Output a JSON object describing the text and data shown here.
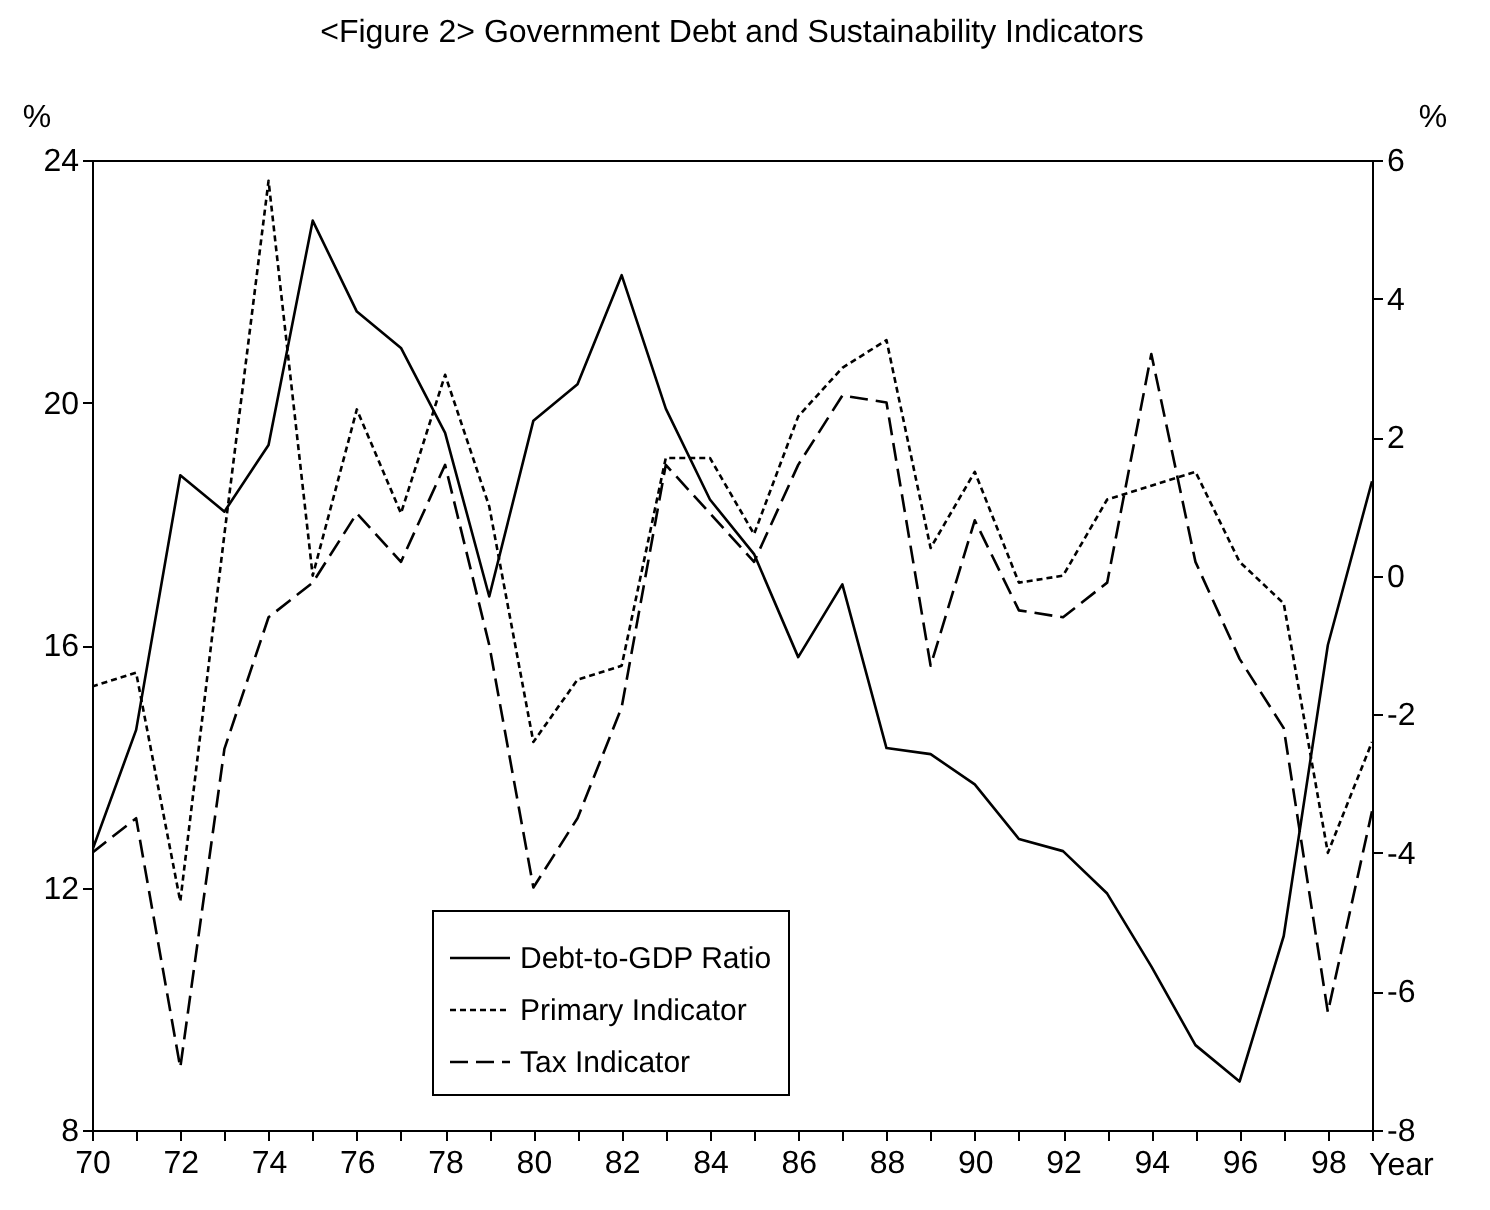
{
  "chart_data": {
    "type": "line",
    "title": "<Figure 2>  Government Debt and Sustainability Indicators",
    "xlabel": "Year",
    "ylabel": "%",
    "y2label": "%",
    "x": [
      70,
      71,
      72,
      73,
      74,
      75,
      76,
      77,
      78,
      79,
      80,
      81,
      82,
      83,
      84,
      85,
      86,
      87,
      88,
      89,
      90,
      91,
      92,
      93,
      94,
      95,
      96,
      97,
      98,
      99
    ],
    "series": [
      {
        "name": "Debt-to-GDP Ratio",
        "color": "#000000",
        "line_style": "solid",
        "axis": "y",
        "values": [
          12.6,
          14.6,
          18.8,
          18.2,
          19.3,
          23.0,
          21.5,
          20.9,
          19.5,
          16.8,
          19.7,
          20.3,
          22.1,
          19.9,
          18.4,
          17.5,
          15.8,
          17.0,
          14.3,
          14.2,
          13.7,
          12.8,
          12.6,
          11.9,
          10.7,
          9.4,
          8.8,
          11.2,
          16.0,
          18.7
        ]
      },
      {
        "name": "Primary Indicator",
        "color": "#000000",
        "line_style": "dotted",
        "axis": "y2",
        "values": [
          -1.6,
          -1.4,
          -4.7,
          0.6,
          5.7,
          0.0,
          2.4,
          0.9,
          2.9,
          1.0,
          -2.4,
          -1.5,
          -1.3,
          1.7,
          1.7,
          0.6,
          2.3,
          3.0,
          3.4,
          0.4,
          1.5,
          -0.1,
          0.0,
          1.1,
          1.3,
          1.5,
          0.2,
          -0.4,
          -4.0,
          -2.4
        ]
      },
      {
        "name": "Tax Indicator",
        "color": "#000000",
        "line_style": "dashed",
        "axis": "y2",
        "values": [
          -4.0,
          -3.5,
          -7.1,
          -2.5,
          -0.6,
          -0.1,
          0.9,
          0.2,
          1.6,
          -1.0,
          -4.5,
          -3.5,
          -1.9,
          1.6,
          0.9,
          0.2,
          1.6,
          2.6,
          2.5,
          -1.3,
          0.8,
          -0.5,
          -0.6,
          -0.1,
          3.2,
          0.2,
          -1.2,
          -2.2,
          -6.3,
          -3.4
        ]
      }
    ],
    "xlim": [
      70,
      99
    ],
    "xticks": [
      70,
      {
        "value": 71,
        "label": null
      },
      72,
      {
        "value": 73,
        "label": null
      },
      74,
      {
        "value": 75,
        "label": null
      },
      76,
      {
        "value": 77,
        "label": null
      },
      78,
      {
        "value": 79,
        "label": null
      },
      80,
      {
        "value": 81,
        "label": null
      },
      82,
      {
        "value": 83,
        "label": null
      },
      84,
      {
        "value": 85,
        "label": null
      },
      86,
      {
        "value": 87,
        "label": null
      },
      88,
      {
        "value": 89,
        "label": null
      },
      90,
      {
        "value": 91,
        "label": null
      },
      92,
      {
        "value": 93,
        "label": null
      },
      94,
      {
        "value": 95,
        "label": null
      },
      96,
      {
        "value": 97,
        "label": null
      },
      98,
      {
        "value": 99,
        "label": null
      }
    ],
    "ylim": [
      8,
      24
    ],
    "yticks": [
      8,
      12,
      16,
      20,
      24
    ],
    "y2lim": [
      -8,
      6
    ],
    "y2ticks": [
      -8,
      -6,
      -4,
      -2,
      0,
      2,
      4,
      6
    ],
    "legend": "bottom",
    "grid": false
  }
}
